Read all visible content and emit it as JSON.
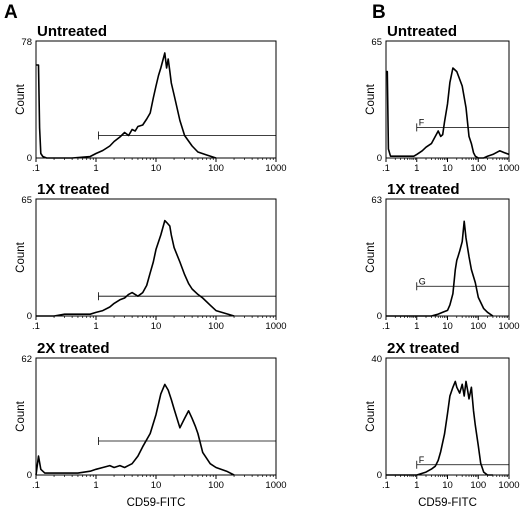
{
  "panel_labels": [
    "A",
    "B"
  ],
  "chart_data": [
    {
      "type": "line",
      "panel": "A",
      "title": "Untreated",
      "xlabel": "",
      "ylabel": "Count",
      "x_scale": "log",
      "xlim": [
        0.1,
        1000
      ],
      "ylim": [
        0,
        78
      ],
      "y_ticks": [
        "0",
        "78"
      ],
      "x_ticks": [
        ".1",
        "1",
        "10",
        "100",
        "1000"
      ],
      "gate": {
        "x_range": [
          1.1,
          1000
        ],
        "y": 15,
        "label": ""
      },
      "series": [
        {
          "x": [
            0.1,
            0.11,
            0.115,
            0.12,
            0.13,
            0.15,
            0.2,
            0.4,
            0.8,
            1.0,
            1.3,
            1.7,
            2.0,
            2.5,
            3.0,
            3.5,
            4.0,
            4.5,
            5.0,
            6.0,
            7.0,
            8.0,
            9.0,
            10.0,
            11.0,
            12.0,
            13.0,
            14.0,
            15.0,
            16.0,
            17.0,
            18.0,
            20.0,
            22.0,
            25.0,
            30.0,
            40.0,
            50.0,
            70.0,
            100.0
          ],
          "y": [
            62,
            62,
            20,
            3,
            1,
            0,
            0,
            0,
            1,
            3,
            5,
            8,
            11,
            14,
            17,
            15,
            19,
            18,
            21,
            22,
            26,
            30,
            40,
            48,
            55,
            60,
            65,
            70,
            60,
            66,
            58,
            50,
            42,
            35,
            25,
            15,
            8,
            4,
            2,
            0
          ]
        }
      ]
    },
    {
      "type": "line",
      "panel": "A",
      "title": "1X treated",
      "xlabel": "",
      "ylabel": "Count",
      "x_scale": "log",
      "xlim": [
        0.1,
        1000
      ],
      "ylim": [
        0,
        65
      ],
      "y_ticks": [
        "0",
        "65"
      ],
      "x_ticks": [
        ".1",
        "1",
        "10",
        "100",
        "1000"
      ],
      "gate": {
        "x_range": [
          1.1,
          1000
        ],
        "y": 11,
        "label": ""
      },
      "series": [
        {
          "x": [
            0.1,
            0.2,
            0.3,
            0.5,
            0.8,
            1.0,
            1.3,
            1.7,
            2.0,
            2.5,
            3.0,
            3.5,
            4.0,
            5.0,
            6.0,
            7.0,
            8.0,
            9.0,
            10.0,
            12.0,
            14.0,
            15.0,
            17.0,
            18.0,
            20.0,
            25.0,
            30.0,
            35.0,
            40.0,
            50.0,
            60.0,
            80.0,
            100.0,
            200.0
          ],
          "y": [
            0,
            0,
            1,
            1,
            1,
            2,
            3,
            5,
            7,
            9,
            10,
            12,
            13,
            11,
            13,
            17,
            24,
            30,
            37,
            45,
            53,
            52,
            50,
            45,
            38,
            30,
            23,
            18,
            15,
            12,
            10,
            6,
            3,
            0
          ]
        }
      ]
    },
    {
      "type": "line",
      "panel": "A",
      "title": "2X treated",
      "xlabel": "CD59-FITC",
      "ylabel": "Count",
      "x_scale": "log",
      "xlim": [
        0.1,
        1000
      ],
      "ylim": [
        0,
        62
      ],
      "y_ticks": [
        "0",
        "62"
      ],
      "x_ticks": [
        ".1",
        "1",
        "10",
        "100",
        "1000"
      ],
      "gate": {
        "x_range": [
          1.1,
          1000
        ],
        "y": 18,
        "label": ""
      },
      "series": [
        {
          "x": [
            0.1,
            0.11,
            0.12,
            0.14,
            0.2,
            0.3,
            0.5,
            0.8,
            1.0,
            1.3,
            1.7,
            2.0,
            2.5,
            3.0,
            4.0,
            5.0,
            6.0,
            8.0,
            10.0,
            12.0,
            14.0,
            16.0,
            18.0,
            20.0,
            25.0,
            30.0,
            35.0,
            40.0,
            45.0,
            50.0,
            60.0,
            80.0,
            100.0,
            150.0,
            200.0
          ],
          "y": [
            0,
            10,
            3,
            1,
            1,
            1,
            1,
            2,
            3,
            4,
            5,
            4,
            5,
            4,
            6,
            10,
            15,
            22,
            32,
            43,
            48,
            45,
            40,
            35,
            25,
            30,
            34,
            30,
            26,
            22,
            12,
            6,
            4,
            2,
            0
          ]
        }
      ]
    },
    {
      "type": "line",
      "panel": "B",
      "title": "Untreated",
      "xlabel": "",
      "ylabel": "Count",
      "x_scale": "log",
      "xlim": [
        0.1,
        1000
      ],
      "ylim": [
        0,
        65
      ],
      "y_ticks": [
        "0",
        "65"
      ],
      "x_ticks": [
        ".1",
        "1",
        "10",
        "100",
        "1000"
      ],
      "gate": {
        "x_range": [
          1.0,
          1000
        ],
        "y": 17,
        "label": "F"
      },
      "series": [
        {
          "x": [
            0.1,
            0.11,
            0.12,
            0.14,
            0.3,
            0.5,
            0.8,
            1.0,
            1.5,
            2.0,
            3.0,
            4.0,
            5.0,
            6.0,
            7.0,
            8.0,
            10.0,
            12.0,
            15.0,
            20.0,
            30.0,
            40.0,
            50.0,
            60.0,
            70.0,
            80.0,
            100.0,
            150.0,
            200.0,
            300.0,
            500.0,
            700.0,
            1000.0
          ],
          "y": [
            48,
            48,
            5,
            1,
            1,
            1,
            1,
            2,
            4,
            6,
            8,
            12,
            15,
            12,
            13,
            20,
            30,
            42,
            50,
            48,
            40,
            28,
            12,
            8,
            3,
            1,
            0,
            0,
            1,
            2,
            4,
            3,
            2
          ]
        }
      ]
    },
    {
      "type": "line",
      "panel": "B",
      "title": "1X treated",
      "xlabel": "",
      "ylabel": "Count",
      "x_scale": "log",
      "xlim": [
        0.1,
        1000
      ],
      "ylim": [
        0,
        63
      ],
      "y_ticks": [
        "0",
        "63"
      ],
      "x_ticks": [
        ".1",
        "1",
        "10",
        "100",
        "1000"
      ],
      "gate": {
        "x_range": [
          1.0,
          1000
        ],
        "y": 16,
        "label": "G"
      },
      "series": [
        {
          "x": [
            0.1,
            0.2,
            0.5,
            1.0,
            2.0,
            3.0,
            5.0,
            7.0,
            10.0,
            12.0,
            15.0,
            18.0,
            20.0,
            22.0,
            25.0,
            30.0,
            35.0,
            40.0,
            50.0,
            60.0,
            80.0,
            100.0,
            150.0,
            200.0,
            300.0
          ],
          "y": [
            0,
            0,
            0,
            0,
            0,
            0,
            1,
            2,
            3,
            6,
            12,
            25,
            30,
            32,
            35,
            40,
            51,
            42,
            32,
            25,
            18,
            10,
            4,
            2,
            0
          ]
        }
      ]
    },
    {
      "type": "line",
      "panel": "B",
      "title": "2X treated",
      "xlabel": "CD59-FITC",
      "ylabel": "Count",
      "x_scale": "log",
      "xlim": [
        0.1,
        1000
      ],
      "ylim": [
        0,
        40
      ],
      "y_ticks": [
        "0",
        "40"
      ],
      "x_ticks": [
        ".1",
        "1",
        "10",
        "100",
        "1000"
      ],
      "gate": {
        "x_range": [
          1.0,
          1000
        ],
        "y": 3.5,
        "label": "F"
      },
      "series": [
        {
          "x": [
            0.1,
            0.3,
            0.6,
            1.0,
            2.0,
            3.0,
            4.0,
            5.0,
            6.0,
            8.0,
            10.0,
            12.0,
            15.0,
            18.0,
            20.0,
            25.0,
            30.0,
            35.0,
            40.0,
            45.0,
            50.0,
            60.0,
            70.0,
            80.0,
            100.0,
            120.0,
            150.0,
            200.0,
            300.0
          ],
          "y": [
            0,
            0,
            0,
            0,
            1,
            2,
            3,
            5,
            8,
            14,
            21,
            27,
            30,
            32,
            30,
            28,
            31,
            27,
            32,
            29,
            26,
            30,
            22,
            17,
            10,
            4,
            1,
            0,
            0
          ]
        }
      ]
    }
  ]
}
